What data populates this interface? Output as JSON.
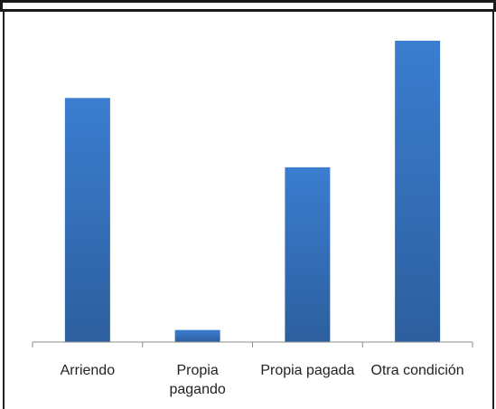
{
  "chart_data": {
    "type": "bar",
    "categories": [
      "Arriendo",
      "Propia pagando",
      "Propia pagada",
      "Otra condición"
    ],
    "category_lines": [
      [
        "Arriendo"
      ],
      [
        "Propia",
        "pagando"
      ],
      [
        "Propia pagada"
      ],
      [
        "Otra condición"
      ]
    ],
    "values": [
      81,
      4,
      58,
      100
    ],
    "ylim": [
      0,
      100
    ],
    "yaxis_visible": false,
    "grid": false,
    "legend": "none",
    "bar_color_top": "#3b7dd0",
    "bar_color_bottom": "#2d5f9e"
  }
}
